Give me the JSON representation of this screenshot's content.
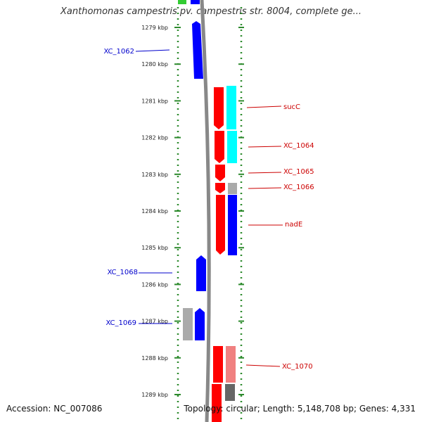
{
  "title": "Xanthomonas campestris pv. campestris str. 8004, complete ge...",
  "footer": {
    "accession": "Accession: NC_007086",
    "topology": "Topology: circular; Length: 5,148,708 bp; Genes: 4,331"
  },
  "kbp_ticks": [
    "1279 kbp",
    "1280 kbp",
    "1281 kbp",
    "1282 kbp",
    "1283 kbp",
    "1284 kbp",
    "1285 kbp",
    "1286 kbp",
    "1287 kbp",
    "1288 kbp",
    "1289 kbp"
  ],
  "colors": {
    "forward_cds": "#ff0000",
    "reverse_cds": "#0000ff",
    "cyan_feature": "#00ffff",
    "grey_feature": "#aaaaaa",
    "pink_feature": "#f08080",
    "dark_grey_feature": "#666666",
    "green_feature": "#33cc33",
    "ruler_dots": "#2e8b2e",
    "backbone": "#888888"
  },
  "gene_labels": [
    {
      "name": "XC_1062",
      "strand": "reverse"
    },
    {
      "name": "sucC",
      "strand": "forward"
    },
    {
      "name": "XC_1064",
      "strand": "forward"
    },
    {
      "name": "XC_1065",
      "strand": "forward"
    },
    {
      "name": "XC_1066",
      "strand": "forward"
    },
    {
      "name": "nadE",
      "strand": "forward"
    },
    {
      "name": "XC_1068",
      "strand": "reverse"
    },
    {
      "name": "XC_1069",
      "strand": "reverse"
    },
    {
      "name": "XC_1070",
      "strand": "forward"
    }
  ]
}
